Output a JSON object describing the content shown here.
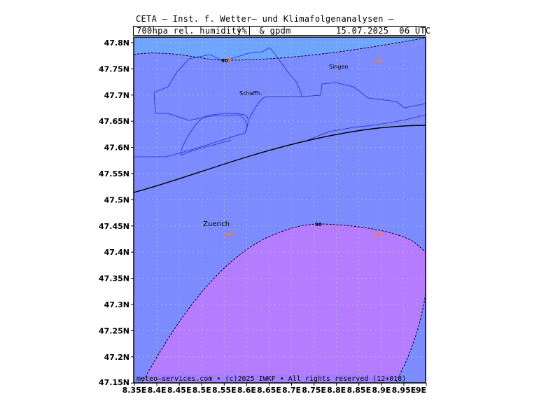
{
  "header": {
    "title": "CETA – Inst. f. Wetter– und Klimafolgenanalysen –",
    "param_left": "700hpa_rel._humidity_",
    "param_unit": "%",
    "param_right": "_&_gpdm",
    "valid_time": "15.07.2025  06 UTC"
  },
  "map": {
    "lat_labels": [
      "47.8N",
      "47.75N",
      "47.7N",
      "47.65N",
      "47.6N",
      "47.55N",
      "47.5N",
      "47.45N",
      "47.4N",
      "47.35N",
      "47.3N",
      "47.25N",
      "47.2N",
      "47.15N"
    ],
    "lon_labels": [
      "8.35E",
      "8.4E",
      "8.45E",
      "8.5E",
      "8.55E",
      "8.6E",
      "8.65E",
      "8.7E",
      "8.75E",
      "8.8E",
      "8.85E",
      "8.9E",
      "8.95E",
      "9E"
    ],
    "places": {
      "singen": "Singen",
      "schaffh": "Schaffh.",
      "zuerich": "Zuerich"
    },
    "contour_labels": {
      "upper": "90",
      "lower": "90"
    },
    "footer": "meteo–services.com • (c)2025 IWKF • All rights reserved (12+018)",
    "colors": {
      "humidity_high": "#6ea5ff",
      "humidity_mid": "#7c8cff",
      "humidity_very_high": "#b67cff",
      "grid": "#b8b8b8",
      "borders": "#1e2ad0",
      "wind_arrows": "#ff7a20"
    }
  }
}
